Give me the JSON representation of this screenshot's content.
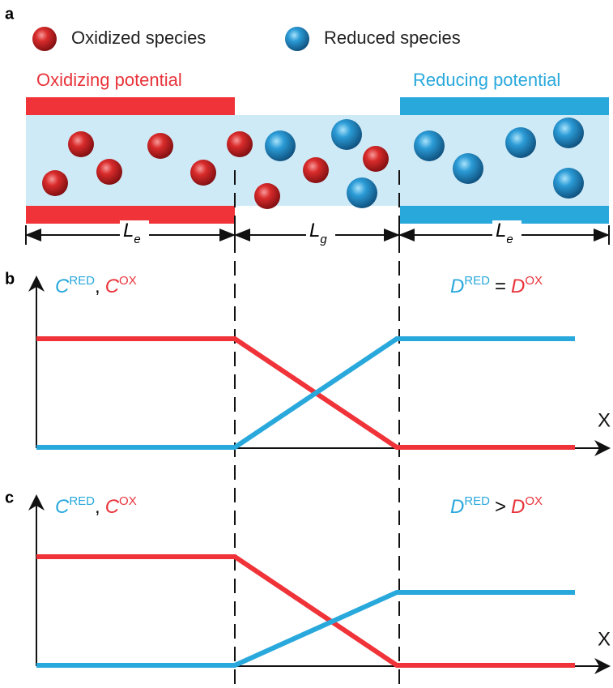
{
  "panels": [
    {
      "label": "a",
      "legend": [
        {
          "label": "Oxidized species"
        },
        {
          "label": "Reduced species"
        }
      ],
      "electrodes": [
        "Oxidizing potential",
        "Reducing potential"
      ],
      "dimensions": [
        {
          "symbol": "L",
          "subscript": "e"
        },
        {
          "symbol": "L",
          "subscript": "g"
        },
        {
          "symbol": "L",
          "subscript": "e"
        }
      ]
    },
    {
      "label": "b",
      "y_axis": {
        "c1": "C",
        "s1": "RED",
        "sep": ",",
        "c2": "C",
        "s2": "OX"
      },
      "relation": {
        "d1": "D",
        "s1": "RED",
        "op": "=",
        "d2": "D",
        "s2": "OX"
      },
      "x_axis": "X"
    },
    {
      "label": "c",
      "y_axis": {
        "c1": "C",
        "s1": "RED",
        "sep": ",",
        "c2": "C",
        "s2": "OX"
      },
      "relation": {
        "d1": "D",
        "s1": "RED",
        "op": ">",
        "d2": "D",
        "s2": "OX"
      },
      "x_axis": "X"
    }
  ]
}
